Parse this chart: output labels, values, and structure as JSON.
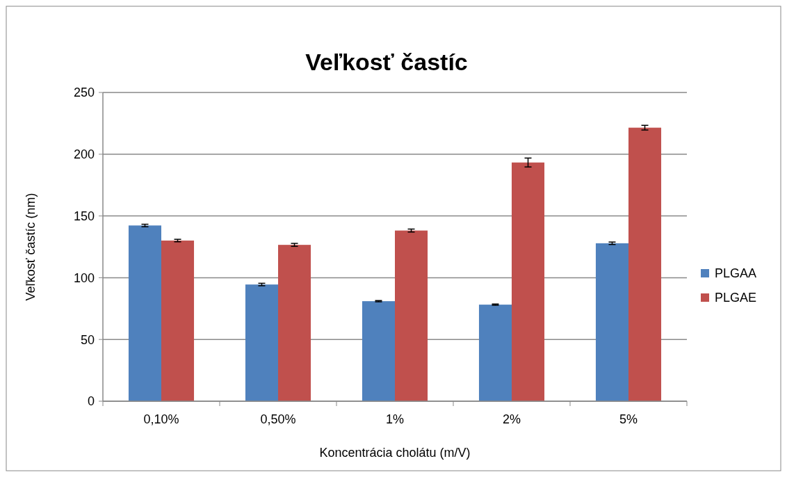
{
  "chart_data": {
    "type": "bar",
    "title": "Veľkosť častíc",
    "xlabel": "Koncentrácia cholátu (m/V)",
    "ylabel": "Veľkosť častíc (nm)",
    "categories": [
      "0,10%",
      "0,50%",
      "1%",
      "2%",
      "5%"
    ],
    "series": [
      {
        "name": "PLGAA",
        "color": "#4f81bd",
        "values": [
          142.3,
          94.5,
          81,
          78.2,
          127.9
        ],
        "errors": [
          1,
          1,
          0.5,
          0.5,
          1
        ]
      },
      {
        "name": "PLGAE",
        "color": "#c0504d",
        "values": [
          130.1,
          126.6,
          138.2,
          193.3,
          221.5
        ],
        "errors": [
          1,
          1.2,
          1.2,
          3.6,
          1.9
        ]
      }
    ],
    "ylim": [
      0,
      250
    ],
    "yticks": [
      0,
      50,
      100,
      150,
      200,
      250
    ],
    "grid": "y",
    "legend": "right"
  }
}
